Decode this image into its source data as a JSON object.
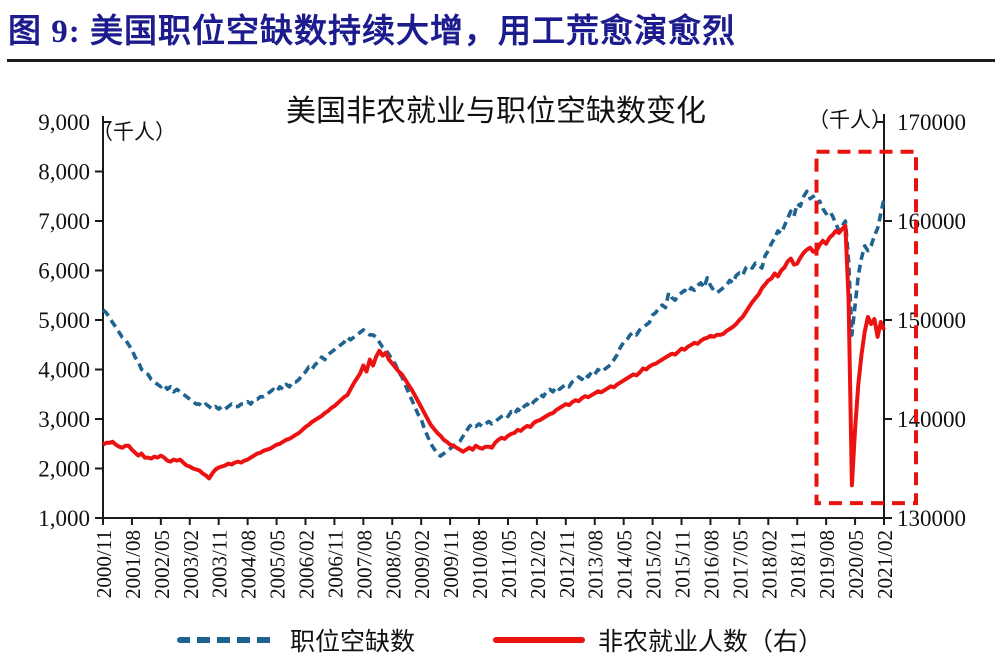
{
  "header": {
    "title": "图 9: 美国职位空缺数持续大增，用工荒愈演愈烈"
  },
  "chart": {
    "title": "美国非农就业与职位空缺数变化",
    "left_unit": "（千人）",
    "right_unit": "（千人）",
    "left_axis": {
      "labels": [
        "9,000",
        "8,000",
        "7,000",
        "6,000",
        "5,000",
        "4,000",
        "3,000",
        "2,000",
        "1,000"
      ],
      "values": [
        9000,
        8000,
        7000,
        6000,
        5000,
        4000,
        3000,
        2000,
        1000
      ]
    },
    "right_axis": {
      "labels": [
        "170000",
        "160000",
        "150000",
        "140000",
        "130000"
      ],
      "values": [
        170000,
        160000,
        150000,
        140000,
        130000
      ]
    }
  },
  "legend": {
    "items": [
      {
        "label": "职位空缺数",
        "color": "#1f6391",
        "style": "dashed"
      },
      {
        "label": "非农就业人数（右）",
        "color": "#ed1212",
        "style": "solid"
      }
    ]
  },
  "colors": {
    "openings": "#1f6391",
    "employment": "#ed1212",
    "highlight": "#e8130f",
    "axis": "#1a1a1a",
    "header_title": "#1c1c8e"
  },
  "chart_data": {
    "type": "line",
    "title": "美国非农就业与职位空缺数变化",
    "x_start": "2000/11",
    "x_end": "2021/02",
    "frequency": "monthly",
    "n_points": 244,
    "x_tick_every_months": 9,
    "x_tick_labels": [
      "2000/11",
      "2001/08",
      "2002/05",
      "2003/02",
      "2003/11",
      "2004/08",
      "2005/05",
      "2006/02",
      "2006/11",
      "2007/08",
      "2008/05",
      "2009/02",
      "2009/11",
      "2010/08",
      "2011/05",
      "2012/02",
      "2012/11",
      "2013/08",
      "2014/05",
      "2015/02",
      "2015/11",
      "2016/08",
      "2017/05",
      "2018/02",
      "2018/11",
      "2019/08",
      "2020/05",
      "2021/02"
    ],
    "left_ylim": [
      1000,
      9000
    ],
    "right_ylim": [
      130000,
      170000
    ],
    "series": [
      {
        "name": "职位空缺数",
        "axis": "left",
        "color": "#1f6391",
        "style": "dashed",
        "values": [
          5200,
          5150,
          5050,
          4950,
          4850,
          4750,
          4650,
          4600,
          4500,
          4400,
          4250,
          4150,
          4000,
          3950,
          3900,
          3800,
          3750,
          3700,
          3650,
          3700,
          3600,
          3650,
          3550,
          3600,
          3550,
          3500,
          3450,
          3400,
          3350,
          3300,
          3300,
          3250,
          3300,
          3250,
          3200,
          3250,
          3200,
          3250,
          3200,
          3250,
          3300,
          3250,
          3250,
          3300,
          3300,
          3350,
          3300,
          3400,
          3400,
          3450,
          3450,
          3500,
          3550,
          3600,
          3550,
          3650,
          3600,
          3700,
          3650,
          3750,
          3750,
          3800,
          3900,
          3950,
          4050,
          4000,
          4100,
          4150,
          4250,
          4200,
          4300,
          4350,
          4400,
          4450,
          4500,
          4550,
          4650,
          4600,
          4650,
          4700,
          4750,
          4800,
          4750,
          4700,
          4700,
          4650,
          4550,
          4450,
          4400,
          4300,
          4200,
          4100,
          3950,
          3850,
          3700,
          3550,
          3400,
          3250,
          3100,
          3000,
          2800,
          2650,
          2500,
          2400,
          2300,
          2250,
          2300,
          2350,
          2400,
          2450,
          2500,
          2550,
          2650,
          2750,
          2850,
          2900,
          2850,
          2900,
          2850,
          2900,
          2950,
          2900,
          2950,
          3000,
          3050,
          3100,
          3050,
          3150,
          3100,
          3200,
          3150,
          3250,
          3300,
          3250,
          3350,
          3400,
          3500,
          3450,
          3550,
          3600,
          3550,
          3650,
          3600,
          3650,
          3700,
          3650,
          3750,
          3800,
          3850,
          3800,
          3900,
          3850,
          3950,
          3900,
          4000,
          3950,
          4000,
          4050,
          4100,
          4200,
          4300,
          4450,
          4550,
          4600,
          4700,
          4750,
          4700,
          4800,
          4850,
          4900,
          4950,
          5100,
          5150,
          5250,
          5300,
          5250,
          5550,
          5450,
          5400,
          5500,
          5550,
          5600,
          5550,
          5650,
          5600,
          5700,
          5750,
          5650,
          5850,
          5700,
          5600,
          5550,
          5600,
          5650,
          5700,
          5800,
          5750,
          5900,
          5950,
          5900,
          6050,
          6100,
          6050,
          6150,
          6100,
          6050,
          6300,
          6400,
          6550,
          6650,
          6800,
          6750,
          6900,
          7050,
          7200,
          7100,
          7350,
          7300,
          7500,
          7600,
          7450,
          7500,
          7350,
          7400,
          7250,
          7150,
          7200,
          7100,
          6950,
          6800,
          6900,
          7000,
          6200,
          4700,
          5300,
          5900,
          6250,
          6500,
          6400,
          6500,
          6700,
          6850,
          7150,
          7450
        ]
      },
      {
        "name": "非农就业人数（右）",
        "axis": "right",
        "color": "#ed1212",
        "style": "solid",
        "values": [
          137400,
          137600,
          137600,
          137700,
          137400,
          137200,
          137100,
          137300,
          137300,
          136900,
          136600,
          136300,
          136500,
          136100,
          136100,
          136000,
          136200,
          136100,
          136300,
          136100,
          135800,
          135700,
          135900,
          135800,
          135900,
          135600,
          135300,
          135200,
          135000,
          134900,
          134800,
          134500,
          134300,
          134000,
          134500,
          134900,
          135100,
          135200,
          135300,
          135500,
          135400,
          135600,
          135700,
          135600,
          135800,
          135900,
          136100,
          136300,
          136500,
          136600,
          136800,
          136900,
          137000,
          137200,
          137400,
          137500,
          137700,
          137900,
          138000,
          138200,
          138400,
          138600,
          138900,
          139200,
          139400,
          139700,
          139900,
          140100,
          140300,
          140600,
          140800,
          141100,
          141300,
          141600,
          141900,
          142200,
          142400,
          143000,
          143600,
          144100,
          144600,
          145400,
          144800,
          146000,
          145400,
          146300,
          146900,
          146400,
          146700,
          146000,
          145600,
          145200,
          144800,
          144500,
          144000,
          143500,
          143000,
          142400,
          141800,
          141200,
          140600,
          140000,
          139400,
          139000,
          138600,
          138300,
          137900,
          137700,
          137400,
          137300,
          137100,
          136900,
          136700,
          136900,
          137100,
          136900,
          137300,
          137100,
          137000,
          137200,
          137200,
          137100,
          137600,
          137900,
          138100,
          138000,
          138300,
          138500,
          138600,
          138900,
          138800,
          139100,
          139300,
          139200,
          139600,
          139800,
          139900,
          140100,
          140300,
          140500,
          140600,
          140900,
          141100,
          141300,
          141500,
          141400,
          141700,
          141900,
          141800,
          142100,
          142300,
          142200,
          142400,
          142600,
          142800,
          142700,
          142900,
          143100,
          143300,
          143200,
          143500,
          143700,
          143900,
          144100,
          144300,
          144500,
          144400,
          144700,
          145100,
          145000,
          145300,
          145500,
          145600,
          145800,
          146000,
          146200,
          146400,
          146600,
          146500,
          146800,
          147100,
          147000,
          147300,
          147500,
          147700,
          147600,
          147900,
          148100,
          148200,
          148400,
          148300,
          148500,
          148500,
          148600,
          148900,
          149100,
          149300,
          149600,
          150000,
          150300,
          150800,
          151300,
          151800,
          152200,
          152600,
          153200,
          153600,
          154000,
          154200,
          154700,
          154400,
          155000,
          155300,
          155900,
          156200,
          155600,
          155700,
          156300,
          156800,
          157100,
          157300,
          156900,
          157000,
          157600,
          158000,
          157700,
          158300,
          158600,
          159000,
          158800,
          159200,
          159500,
          152000,
          133300,
          139000,
          143500,
          146500,
          148800,
          150300,
          149600,
          150100,
          148300,
          149800,
          149000
        ]
      }
    ],
    "annotations": {
      "highlight_box": {
        "color": "#e8130f",
        "style": "dashed",
        "from_month_index": 222,
        "to": "past-right-edge",
        "top_left_axis_value": 8400,
        "bottom_left_axis_value": 1300
      }
    }
  }
}
